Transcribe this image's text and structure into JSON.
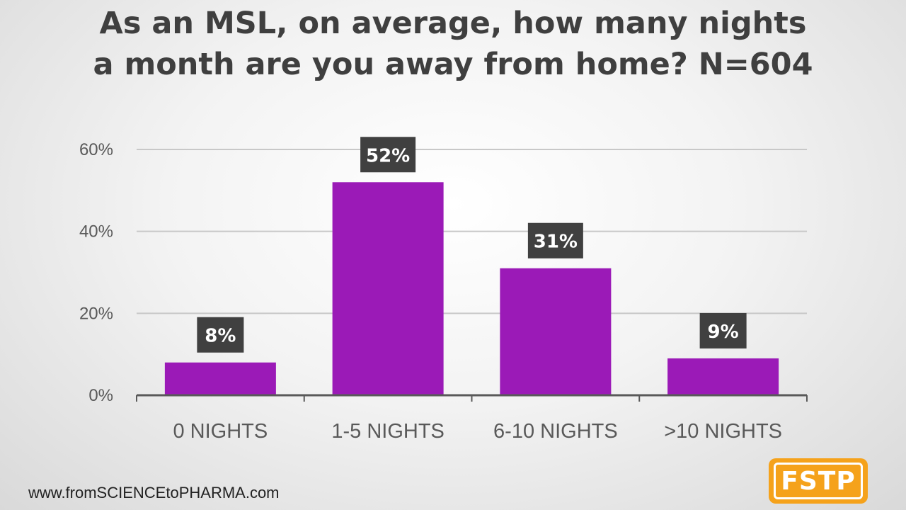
{
  "title_lines": [
    "As an MSL, on average, how many nights",
    "a month are you away from home? N=604"
  ],
  "footer": {
    "url": "www.fromSCIENCEtoPHARMA.com",
    "logo_text": "FSTP"
  },
  "colors": {
    "bar": "#9b1ab7",
    "label_box": "#404040",
    "label_text": "#ffffff",
    "gridline": "#c8c8c8",
    "axis": "#595959",
    "tick_text": "#595959",
    "category_text": "#595959",
    "logo": "#f5a21b"
  },
  "chart_data": {
    "type": "bar",
    "title": "As an MSL, on average, how many nights a month are you away from home? N=604",
    "categories": [
      "0 NIGHTS",
      "1-5 NIGHTS",
      "6-10 NIGHTS",
      ">10 NIGHTS"
    ],
    "values": [
      8,
      52,
      31,
      9
    ],
    "data_labels": [
      "8%",
      "52%",
      "31%",
      "9%"
    ],
    "unit": "%",
    "ylim": [
      0,
      60
    ],
    "yticks": [
      0,
      20,
      40,
      60
    ],
    "ytick_labels": [
      "0%",
      "20%",
      "40%",
      "60%"
    ],
    "grid": true,
    "legend": "none",
    "xlabel": "",
    "ylabel": ""
  }
}
